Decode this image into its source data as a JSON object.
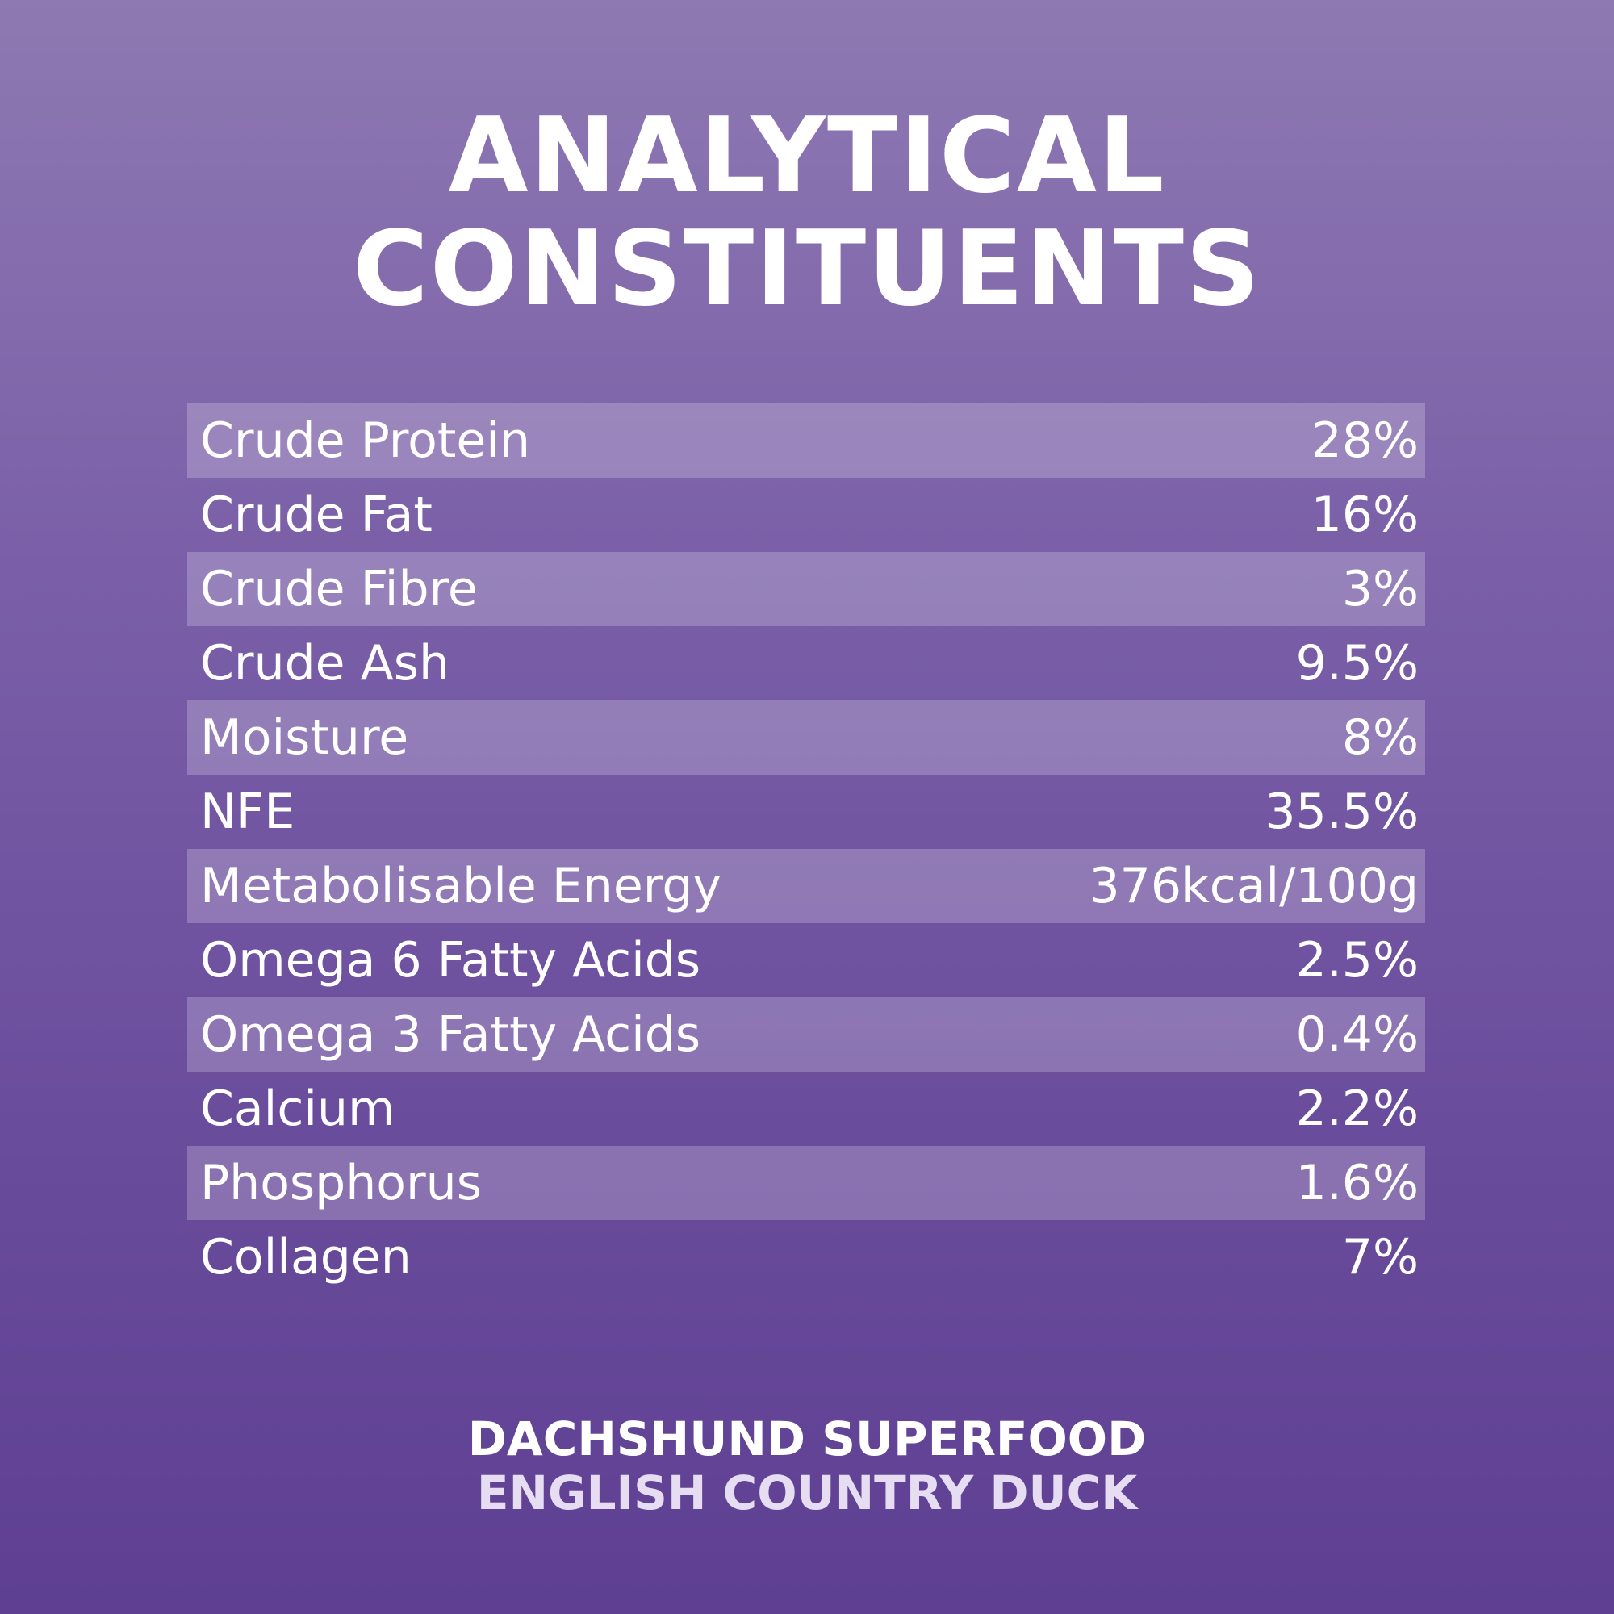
{
  "title": {
    "line1": "ANALYTICAL",
    "line2": "CONSTITUENTS"
  },
  "constituents": [
    {
      "label": "Crude Protein",
      "value": "28%"
    },
    {
      "label": "Crude Fat",
      "value": "16%"
    },
    {
      "label": "Crude Fibre",
      "value": "3%"
    },
    {
      "label": "Crude Ash",
      "value": "9.5%"
    },
    {
      "label": "Moisture",
      "value": "8%"
    },
    {
      "label": "NFE",
      "value": "35.5%"
    },
    {
      "label": "Metabolisable Energy",
      "value": "376kcal/100g"
    },
    {
      "label": "Omega 6 Fatty Acids",
      "value": "2.5%"
    },
    {
      "label": "Omega 3 Fatty Acids",
      "value": "0.4%"
    },
    {
      "label": "Calcium",
      "value": "2.2%"
    },
    {
      "label": "Phosphorus",
      "value": "1.6%"
    },
    {
      "label": "Collagen",
      "value": "7%"
    }
  ],
  "footer": {
    "brand": "DACHSHUND SUPERFOOD",
    "product": "ENGLISH COUNTRY DUCK"
  }
}
